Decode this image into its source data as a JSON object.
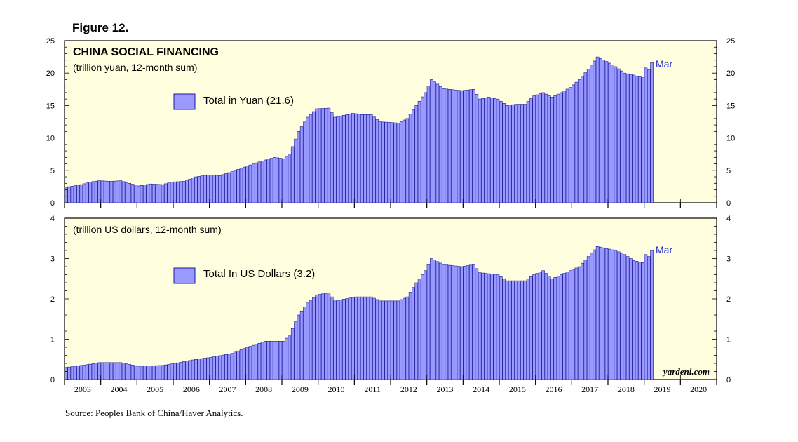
{
  "figure_label": "Figure 12.",
  "source": "Source: Peoples Bank of China/Haver Analytics.",
  "brand": "yardeni.com",
  "colors": {
    "panel_bg": "#ffffe0",
    "bar_fill": "#9999ff",
    "bar_stroke": "#1a1a99",
    "annotation": "#1f1fd0"
  },
  "chart_data": [
    {
      "type": "bar",
      "title": "CHINA SOCIAL FINANCING",
      "subtitle": "(trillion yuan, 12-month sum)",
      "legend": "Total in Yuan (21.6)",
      "annotation": "Mar",
      "ylim": [
        0,
        25
      ],
      "yticks": [
        0,
        5,
        10,
        15,
        20,
        25
      ],
      "x_start": "2003-01",
      "x_end": "2019-03",
      "xlim_years": [
        2003,
        2021
      ],
      "x_tick_labels": [
        "2003",
        "2004",
        "2005",
        "2006",
        "2007",
        "2008",
        "2009",
        "2010",
        "2011",
        "2012",
        "2013",
        "2014",
        "2015",
        "2016",
        "2017",
        "2018",
        "2019",
        "2020"
      ],
      "keypoints": [
        [
          "2003-01",
          2.4
        ],
        [
          "2003-06",
          2.8
        ],
        [
          "2003-09",
          3.2
        ],
        [
          "2003-12",
          3.4
        ],
        [
          "2004-04",
          3.3
        ],
        [
          "2004-07",
          3.4
        ],
        [
          "2004-10",
          3.0
        ],
        [
          "2005-01",
          2.6
        ],
        [
          "2005-05",
          2.9
        ],
        [
          "2005-09",
          2.8
        ],
        [
          "2005-12",
          3.2
        ],
        [
          "2006-04",
          3.3
        ],
        [
          "2006-08",
          4.0
        ],
        [
          "2006-12",
          4.3
        ],
        [
          "2007-04",
          4.2
        ],
        [
          "2007-08",
          4.8
        ],
        [
          "2007-12",
          5.5
        ],
        [
          "2008-03",
          6.0
        ],
        [
          "2008-07",
          6.6
        ],
        [
          "2008-10",
          7.0
        ],
        [
          "2009-01",
          6.8
        ],
        [
          "2009-03",
          7.5
        ],
        [
          "2009-06",
          11.0
        ],
        [
          "2009-09",
          13.2
        ],
        [
          "2009-12",
          14.5
        ],
        [
          "2010-04",
          14.6
        ],
        [
          "2010-06",
          13.2
        ],
        [
          "2010-12",
          13.8
        ],
        [
          "2011-03",
          13.6
        ],
        [
          "2011-06",
          13.6
        ],
        [
          "2011-09",
          12.5
        ],
        [
          "2011-12",
          12.4
        ],
        [
          "2012-03",
          12.3
        ],
        [
          "2012-06",
          13.0
        ],
        [
          "2012-09",
          15.0
        ],
        [
          "2012-12",
          17.0
        ],
        [
          "2013-02",
          19.0
        ],
        [
          "2013-06",
          17.6
        ],
        [
          "2013-12",
          17.3
        ],
        [
          "2014-04",
          17.5
        ],
        [
          "2014-06",
          16.0
        ],
        [
          "2014-09",
          16.3
        ],
        [
          "2014-12",
          16.0
        ],
        [
          "2015-03",
          15.0
        ],
        [
          "2015-06",
          15.2
        ],
        [
          "2015-09",
          15.2
        ],
        [
          "2015-12",
          16.5
        ],
        [
          "2016-03",
          17.0
        ],
        [
          "2016-06",
          16.3
        ],
        [
          "2016-09",
          17.0
        ],
        [
          "2016-12",
          17.8
        ],
        [
          "2017-03",
          19.0
        ],
        [
          "2017-06",
          20.6
        ],
        [
          "2017-09",
          22.5
        ],
        [
          "2017-12",
          21.8
        ],
        [
          "2018-03",
          21.0
        ],
        [
          "2018-06",
          20.0
        ],
        [
          "2018-09",
          19.7
        ],
        [
          "2018-12",
          19.3
        ],
        [
          "2019-01",
          20.8
        ],
        [
          "2019-02",
          20.5
        ],
        [
          "2019-03",
          21.6
        ]
      ]
    },
    {
      "type": "bar",
      "subtitle": "(trillion US dollars, 12-month sum)",
      "legend": "Total In US Dollars (3.2)",
      "annotation": "Mar",
      "ylim": [
        0,
        4
      ],
      "yticks": [
        0,
        1,
        2,
        3,
        4
      ],
      "x_start": "2003-01",
      "x_end": "2019-03",
      "xlim_years": [
        2003,
        2021
      ],
      "x_tick_labels": [
        "2003",
        "2004",
        "2005",
        "2006",
        "2007",
        "2008",
        "2009",
        "2010",
        "2011",
        "2012",
        "2013",
        "2014",
        "2015",
        "2016",
        "2017",
        "2018",
        "2019",
        "2020"
      ],
      "keypoints": [
        [
          "2003-01",
          0.3
        ],
        [
          "2003-09",
          0.38
        ],
        [
          "2003-12",
          0.42
        ],
        [
          "2004-07",
          0.42
        ],
        [
          "2005-01",
          0.33
        ],
        [
          "2005-09",
          0.35
        ],
        [
          "2006-01",
          0.4
        ],
        [
          "2006-08",
          0.5
        ],
        [
          "2007-01",
          0.55
        ],
        [
          "2007-08",
          0.65
        ],
        [
          "2008-01",
          0.8
        ],
        [
          "2008-07",
          0.95
        ],
        [
          "2009-01",
          0.95
        ],
        [
          "2009-03",
          1.1
        ],
        [
          "2009-06",
          1.6
        ],
        [
          "2009-09",
          1.9
        ],
        [
          "2009-12",
          2.1
        ],
        [
          "2010-04",
          2.15
        ],
        [
          "2010-06",
          1.95
        ],
        [
          "2011-01",
          2.05
        ],
        [
          "2011-06",
          2.05
        ],
        [
          "2011-09",
          1.95
        ],
        [
          "2012-03",
          1.95
        ],
        [
          "2012-06",
          2.05
        ],
        [
          "2012-09",
          2.4
        ],
        [
          "2012-12",
          2.7
        ],
        [
          "2013-02",
          3.0
        ],
        [
          "2013-06",
          2.85
        ],
        [
          "2013-12",
          2.8
        ],
        [
          "2014-04",
          2.85
        ],
        [
          "2014-06",
          2.65
        ],
        [
          "2014-12",
          2.6
        ],
        [
          "2015-03",
          2.45
        ],
        [
          "2015-09",
          2.45
        ],
        [
          "2015-12",
          2.6
        ],
        [
          "2016-03",
          2.7
        ],
        [
          "2016-06",
          2.5
        ],
        [
          "2016-09",
          2.6
        ],
        [
          "2016-12",
          2.7
        ],
        [
          "2017-03",
          2.8
        ],
        [
          "2017-06",
          3.05
        ],
        [
          "2017-09",
          3.3
        ],
        [
          "2017-12",
          3.25
        ],
        [
          "2018-03",
          3.2
        ],
        [
          "2018-06",
          3.1
        ],
        [
          "2018-09",
          2.95
        ],
        [
          "2018-12",
          2.9
        ],
        [
          "2019-01",
          3.1
        ],
        [
          "2019-02",
          3.05
        ],
        [
          "2019-03",
          3.2
        ]
      ]
    }
  ]
}
